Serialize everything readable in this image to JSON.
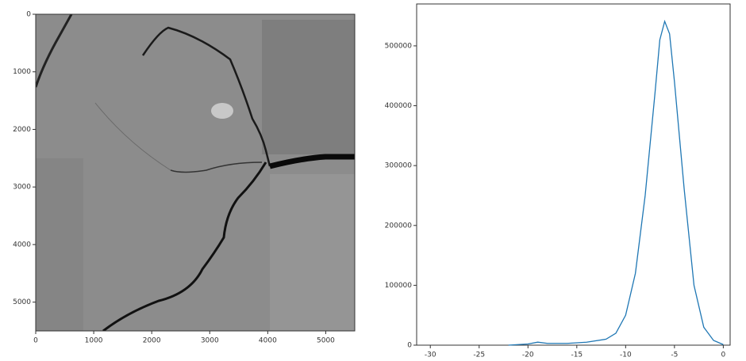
{
  "chart_data": [
    {
      "type": "image",
      "xlim": [
        0,
        5500
      ],
      "ylim": [
        5500,
        0
      ],
      "xticks": [
        0,
        1000,
        2000,
        3000,
        4000,
        5000
      ],
      "yticks": [
        0,
        1000,
        2000,
        3000,
        4000,
        5000
      ]
    },
    {
      "type": "line",
      "x": [
        -22,
        -20,
        -19,
        -18,
        -16,
        -14,
        -12,
        -11,
        -10,
        -9,
        -8,
        -7,
        -6.5,
        -6,
        -5.5,
        -5,
        -4,
        -3,
        -2,
        -1,
        0
      ],
      "series": [
        {
          "color": "#1f77b4",
          "values": [
            0,
            2000,
            5000,
            3000,
            3000,
            5000,
            10000,
            20000,
            50000,
            120000,
            250000,
            420000,
            510000,
            541000,
            520000,
            440000,
            260000,
            100000,
            30000,
            8000,
            1000
          ]
        }
      ],
      "xlim": [
        -31.4,
        0.7
      ],
      "ylim": [
        0,
        570000
      ],
      "xticks": [
        -30,
        -25,
        -20,
        -15,
        -10,
        -5,
        0
      ],
      "yticks": [
        0,
        100000,
        200000,
        300000,
        400000,
        500000
      ]
    }
  ]
}
